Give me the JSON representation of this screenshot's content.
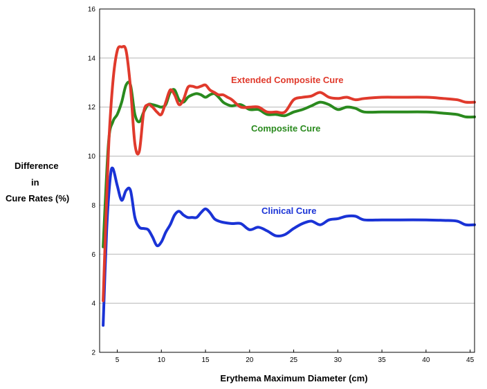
{
  "chart_data": {
    "type": "line",
    "title": "",
    "xlabel": "Erythema Maximum Diameter (cm)",
    "ylabel_lines": [
      "Difference",
      "in",
      "Cure Rates",
      "(%)"
    ],
    "xlim": [
      3,
      45.5
    ],
    "ylim": [
      2,
      16
    ],
    "x_ticks": [
      5,
      10,
      15,
      20,
      25,
      30,
      35,
      40,
      45
    ],
    "y_ticks": [
      2,
      4,
      6,
      8,
      10,
      12,
      14,
      16
    ],
    "grid": "horizontal",
    "series": [
      {
        "name": "Extended Composite Cure",
        "color": "#e03a2c",
        "x": [
          3.4,
          4.0,
          4.5,
          5.0,
          5.5,
          6.0,
          6.5,
          7.0,
          7.5,
          8.0,
          8.5,
          9.0,
          9.5,
          10.0,
          10.5,
          11.0,
          11.5,
          12.0,
          12.5,
          13.0,
          13.5,
          14.0,
          14.5,
          15.0,
          15.5,
          16.0,
          16.5,
          17.0,
          17.5,
          18.0,
          19.0,
          20.0,
          21.0,
          22.0,
          23.0,
          24.0,
          25.0,
          26.0,
          27.0,
          28.0,
          29.0,
          30.0,
          31.0,
          32.0,
          33.0,
          35.0,
          37.0,
          40.0,
          42.0,
          43.5,
          44.5,
          45.5
        ],
        "y": [
          4.1,
          10.2,
          13.0,
          14.3,
          14.45,
          14.3,
          12.8,
          10.5,
          10.2,
          11.8,
          12.1,
          12.0,
          11.8,
          11.7,
          12.2,
          12.7,
          12.5,
          12.1,
          12.3,
          12.8,
          12.85,
          12.8,
          12.85,
          12.9,
          12.7,
          12.6,
          12.5,
          12.5,
          12.4,
          12.3,
          12.0,
          12.0,
          12.0,
          11.8,
          11.8,
          11.8,
          12.3,
          12.4,
          12.45,
          12.6,
          12.4,
          12.35,
          12.4,
          12.3,
          12.35,
          12.4,
          12.4,
          12.4,
          12.35,
          12.3,
          12.2,
          12.2
        ]
      },
      {
        "name": "Composite Cure",
        "color": "#2a8a1e",
        "x": [
          3.4,
          4.0,
          4.5,
          5.0,
          5.5,
          6.0,
          6.5,
          7.0,
          7.5,
          8.0,
          8.5,
          9.0,
          9.5,
          10.0,
          10.5,
          11.0,
          11.5,
          12.0,
          12.5,
          13.0,
          13.5,
          14.0,
          14.5,
          15.0,
          15.5,
          16.0,
          16.5,
          17.0,
          17.5,
          18.0,
          19.0,
          20.0,
          21.0,
          22.0,
          23.0,
          24.0,
          25.0,
          26.0,
          27.0,
          28.0,
          29.0,
          30.0,
          31.0,
          32.0,
          33.0,
          35.0,
          37.0,
          40.0,
          42.0,
          43.5,
          44.5,
          45.5
        ],
        "y": [
          6.3,
          10.5,
          11.4,
          11.7,
          12.2,
          12.9,
          12.9,
          11.7,
          11.4,
          11.8,
          12.1,
          12.1,
          12.05,
          12.0,
          12.1,
          12.6,
          12.7,
          12.3,
          12.2,
          12.4,
          12.5,
          12.55,
          12.5,
          12.4,
          12.5,
          12.55,
          12.4,
          12.2,
          12.1,
          12.05,
          12.1,
          11.9,
          11.9,
          11.7,
          11.7,
          11.65,
          11.8,
          11.9,
          12.05,
          12.2,
          12.1,
          11.9,
          12.0,
          11.95,
          11.8,
          11.8,
          11.8,
          11.8,
          11.75,
          11.7,
          11.6,
          11.6
        ]
      },
      {
        "name": "Clinical Cure",
        "color": "#1a33d6",
        "x": [
          3.4,
          3.8,
          4.2,
          4.5,
          5.0,
          5.5,
          6.0,
          6.5,
          7.0,
          7.5,
          8.0,
          8.5,
          9.0,
          9.5,
          10.0,
          10.5,
          11.0,
          11.5,
          12.0,
          12.5,
          13.0,
          13.5,
          14.0,
          14.5,
          15.0,
          15.5,
          16.0,
          16.5,
          17.0,
          18.0,
          19.0,
          20.0,
          21.0,
          22.0,
          23.0,
          24.0,
          25.0,
          26.0,
          27.0,
          28.0,
          29.0,
          30.0,
          31.0,
          32.0,
          33.0,
          35.0,
          37.0,
          40.0,
          42.0,
          43.5,
          44.5,
          45.5
        ],
        "y": [
          3.1,
          7.0,
          9.1,
          9.5,
          8.8,
          8.2,
          8.6,
          8.6,
          7.5,
          7.1,
          7.05,
          7.0,
          6.7,
          6.35,
          6.5,
          6.9,
          7.2,
          7.6,
          7.75,
          7.6,
          7.5,
          7.5,
          7.5,
          7.7,
          7.85,
          7.7,
          7.45,
          7.35,
          7.3,
          7.25,
          7.25,
          7.0,
          7.1,
          6.95,
          6.75,
          6.8,
          7.05,
          7.25,
          7.35,
          7.2,
          7.4,
          7.45,
          7.55,
          7.55,
          7.4,
          7.4,
          7.4,
          7.4,
          7.38,
          7.35,
          7.2,
          7.2
        ]
      }
    ]
  }
}
